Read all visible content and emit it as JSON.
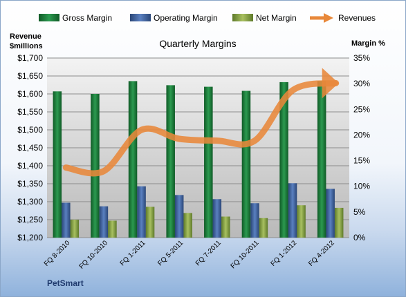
{
  "chart_data": {
    "type": "bar",
    "title": "Quarterly Margins",
    "left_axis_label_lines": [
      "Revenue",
      "$millions"
    ],
    "right_axis_label": "Margin %",
    "company": "PetSmart",
    "categories": [
      "FQ 8-2010",
      "FQ 10-2010",
      "FQ 1-2011",
      "FQ 5-2011",
      "FQ 7-2011",
      "FQ 10-2011",
      "FQ 1-2012",
      "FQ 4-2012"
    ],
    "left_axis": {
      "min": 1200,
      "max": 1700,
      "step": 50,
      "ticks": [
        "$1,200",
        "$1,250",
        "$1,300",
        "$1,350",
        "$1,400",
        "$1,450",
        "$1,500",
        "$1,550",
        "$1,600",
        "$1,650",
        "$1,700"
      ]
    },
    "right_axis": {
      "min": 0,
      "max": 35,
      "step": 5,
      "ticks": [
        "0%",
        "5%",
        "10%",
        "15%",
        "20%",
        "25%",
        "30%",
        "35%"
      ]
    },
    "series": [
      {
        "name": "Gross Margin",
        "kind": "bar",
        "axis": "right",
        "color": "#1e7a3c",
        "values": [
          28.5,
          28.0,
          30.5,
          29.7,
          29.4,
          28.6,
          30.3,
          30.5
        ]
      },
      {
        "name": "Operating Margin",
        "kind": "bar",
        "axis": "right",
        "color": "#3a5f9e",
        "values": [
          6.8,
          6.1,
          10.0,
          8.3,
          7.5,
          6.7,
          10.6,
          9.5
        ]
      },
      {
        "name": "Net Margin",
        "kind": "bar",
        "axis": "right",
        "color": "#8aa64a",
        "values": [
          3.5,
          3.3,
          6.0,
          4.8,
          4.1,
          3.8,
          6.3,
          5.8
        ]
      },
      {
        "name": "Revenues",
        "kind": "line",
        "axis": "left",
        "color": "#e8883a",
        "values": [
          1395,
          1385,
          1500,
          1475,
          1470,
          1470,
          1610,
          1630
        ]
      }
    ],
    "grid": true,
    "legend_position": "top"
  }
}
